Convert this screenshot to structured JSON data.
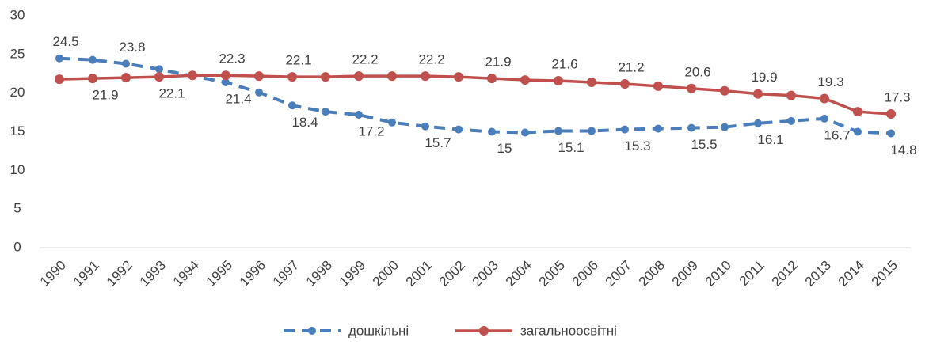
{
  "chart_data": {
    "type": "line",
    "categories": [
      "1990",
      "1991",
      "1992",
      "1993",
      "1994",
      "1995",
      "1996",
      "1997",
      "1998",
      "1999",
      "2000",
      "2001",
      "2002",
      "2003",
      "2004",
      "2005",
      "2006",
      "2007",
      "2008",
      "2009",
      "2010",
      "2011",
      "2012",
      "2013",
      "2014",
      "2015"
    ],
    "series": [
      {
        "name": "дошкільні",
        "color": "#4a7ebb",
        "dashed": true,
        "values": [
          24.5,
          24.3,
          23.8,
          23.1,
          22.2,
          21.4,
          20.1,
          18.4,
          17.6,
          17.2,
          16.2,
          15.7,
          15.3,
          15,
          14.9,
          15.1,
          15.1,
          15.3,
          15.4,
          15.5,
          15.6,
          16.1,
          16.4,
          16.7,
          15.0,
          14.8
        ],
        "value_labels": [
          "24.5",
          null,
          "23.8",
          null,
          null,
          "21.4",
          null,
          "18.4",
          null,
          "17.2",
          null,
          "15.7",
          null,
          "15",
          null,
          "15.1",
          null,
          "15.3",
          null,
          "15.5",
          null,
          "16.1",
          null,
          "16.7",
          null,
          "14.8"
        ]
      },
      {
        "name": "загальноосвітні",
        "color": "#c0504d",
        "dashed": false,
        "values": [
          21.8,
          21.9,
          22.0,
          22.1,
          22.3,
          22.3,
          22.2,
          22.1,
          22.1,
          22.2,
          22.2,
          22.2,
          22.1,
          21.9,
          21.7,
          21.6,
          21.4,
          21.2,
          20.9,
          20.6,
          20.3,
          19.9,
          19.7,
          19.3,
          17.6,
          17.3
        ],
        "value_labels": [
          null,
          "21.9",
          null,
          "22.1",
          null,
          "22.3",
          null,
          "22.1",
          null,
          "22.2",
          null,
          "22.2",
          null,
          "21.9",
          null,
          "21.6",
          null,
          "21.2",
          null,
          "20.6",
          null,
          "19.9",
          null,
          "19.3",
          null,
          "17.3"
        ]
      }
    ],
    "ylim": [
      0,
      30
    ],
    "yticks": [
      0,
      5,
      10,
      15,
      20,
      25,
      30
    ],
    "grid": false,
    "legend": "bottom"
  }
}
